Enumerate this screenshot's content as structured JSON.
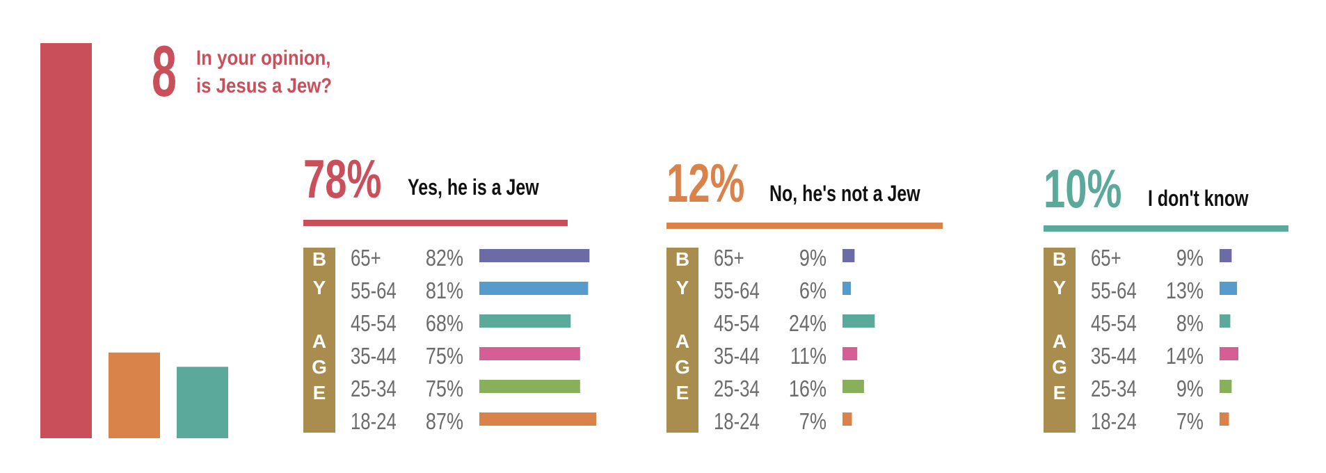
{
  "question": {
    "number": "8",
    "line1": "In your opinion,",
    "line2": "is Jesus a Jew?",
    "color": "#c94f5a"
  },
  "by_age_label": "BY AGE",
  "colors": {
    "red": "#c94f5a",
    "orange": "#d9834a",
    "teal": "#5aa99b",
    "sidebar": "#a98d4f",
    "text_gray": "#6b6b6b",
    "age_65plus": "#6d6ba6",
    "age_55_64": "#579bcd",
    "age_45_54": "#5aa99b",
    "age_35_44": "#d45e95",
    "age_25_34": "#88b05a",
    "age_18_24": "#d9834a"
  },
  "chart_data": [
    {
      "type": "bar",
      "categories": [
        "Yes, he is a Jew",
        "No, he's not a Jew",
        "I don't know"
      ],
      "values": [
        78,
        12,
        10
      ],
      "colors": [
        "#c94f5a",
        "#d9834a",
        "#5aa99b"
      ]
    },
    {
      "type": "bar",
      "title": "Yes, he is a Jew",
      "headline": "78%",
      "color": "#c94f5a",
      "categories": [
        "65+",
        "55-64",
        "45-54",
        "35-44",
        "25-34",
        "18-24"
      ],
      "values": [
        82,
        81,
        68,
        75,
        75,
        87
      ],
      "labels": [
        "82%",
        "81%",
        "68%",
        "75%",
        "75%",
        "87%"
      ]
    },
    {
      "type": "bar",
      "title": "No, he's not a Jew",
      "headline": "12%",
      "color": "#d9834a",
      "categories": [
        "65+",
        "55-64",
        "45-54",
        "35-44",
        "25-34",
        "18-24"
      ],
      "values": [
        9,
        6,
        24,
        11,
        16,
        7
      ],
      "labels": [
        "9%",
        "6%",
        "24%",
        "11%",
        "16%",
        "7%"
      ]
    },
    {
      "type": "bar",
      "title": "I don't know",
      "headline": "10%",
      "color": "#5aa99b",
      "categories": [
        "65+",
        "55-64",
        "45-54",
        "35-44",
        "25-34",
        "18-24"
      ],
      "values": [
        9,
        13,
        8,
        14,
        9,
        7
      ],
      "labels": [
        "9%",
        "13%",
        "8%",
        "14%",
        "9%",
        "7%"
      ]
    }
  ]
}
